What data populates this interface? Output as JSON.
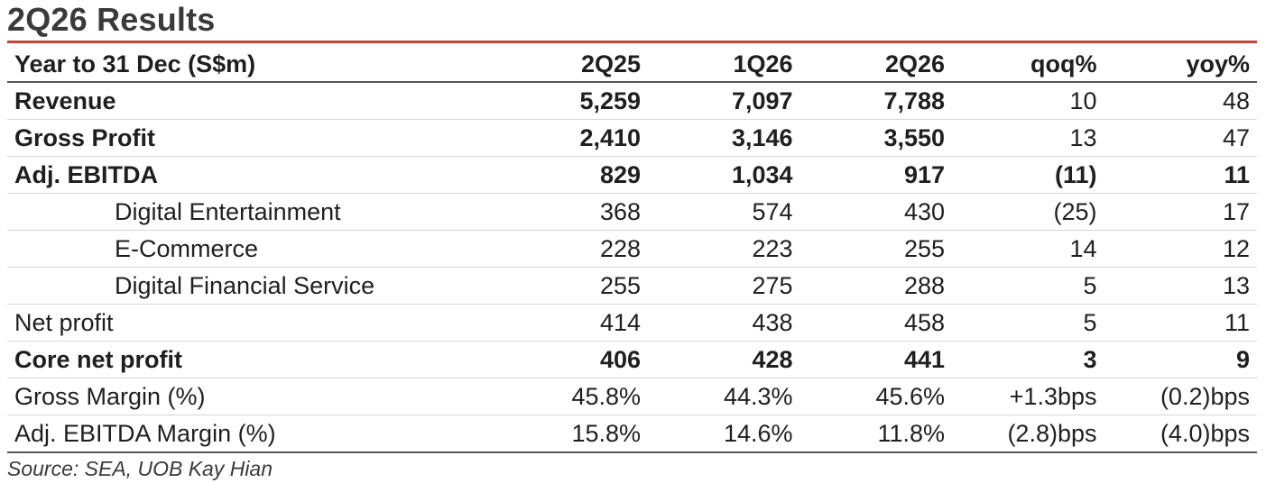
{
  "title": "2Q26 Results",
  "table": {
    "headers": [
      "Year to 31 Dec (S$m)",
      "2Q25",
      "1Q26",
      "2Q26",
      "qoq%",
      "yoy%"
    ],
    "rows": [
      {
        "label": "Revenue",
        "cells": [
          "5,259",
          "7,097",
          "7,788",
          "10",
          "48"
        ]
      },
      {
        "label": "Gross Profit",
        "cells": [
          "2,410",
          "3,146",
          "3,550",
          "13",
          "47"
        ]
      },
      {
        "label": "Adj. EBITDA",
        "cells": [
          "829",
          "1,034",
          "917",
          "(11)",
          "11"
        ]
      },
      {
        "label": "Digital Entertainment",
        "cells": [
          "368",
          "574",
          "430",
          "(25)",
          "17"
        ]
      },
      {
        "label": "E-Commerce",
        "cells": [
          "228",
          "223",
          "255",
          "14",
          "12"
        ]
      },
      {
        "label": "Digital Financial Service",
        "cells": [
          "255",
          "275",
          "288",
          "5",
          "13"
        ]
      },
      {
        "label": "Net profit",
        "cells": [
          "414",
          "438",
          "458",
          "5",
          "11"
        ]
      },
      {
        "label": "Core net profit",
        "cells": [
          "406",
          "428",
          "441",
          "3",
          "9"
        ]
      },
      {
        "label": "Gross Margin (%)",
        "cells": [
          "45.8%",
          "44.3%",
          "45.6%",
          "+1.3bps",
          "(0.2)bps"
        ]
      },
      {
        "label": "Adj. EBITDA Margin (%)",
        "cells": [
          "15.8%",
          "14.6%",
          "11.8%",
          "(2.8)bps",
          "(4.0)bps"
        ]
      }
    ]
  },
  "source": "Source: SEA, UOB Kay Hian"
}
